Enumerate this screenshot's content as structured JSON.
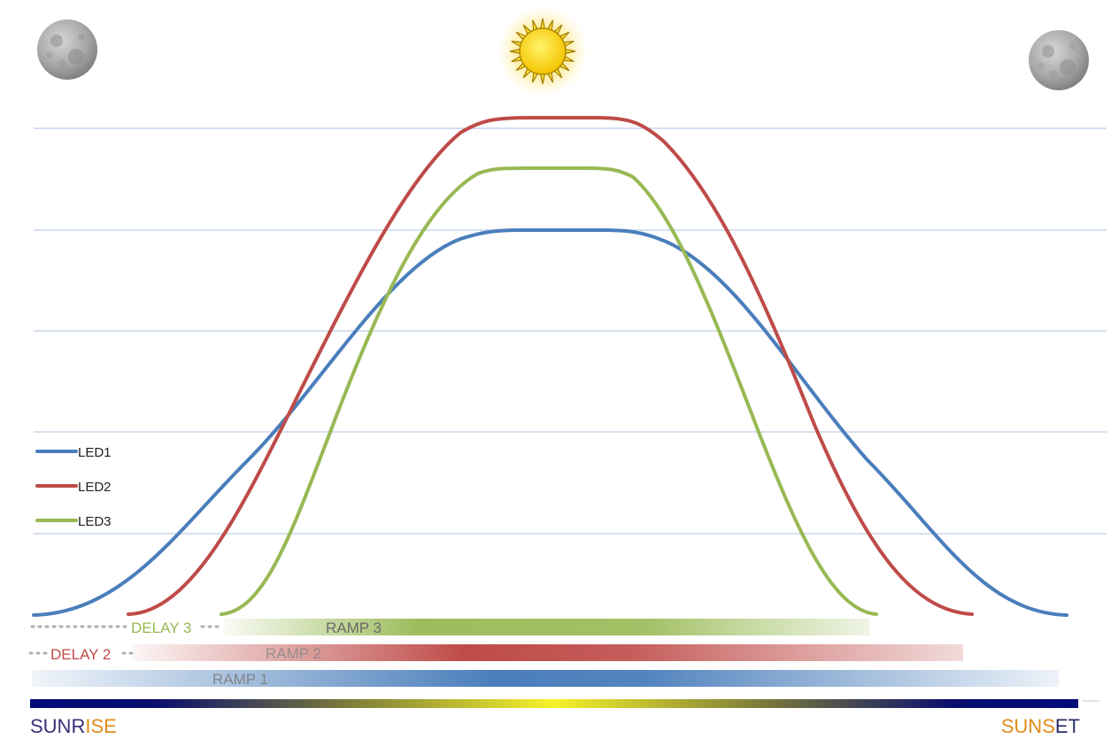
{
  "legend": {
    "led1": "LED1",
    "led2": "LED2",
    "led3": "LED3"
  },
  "bars": {
    "delay3": "DELAY 3",
    "ramp3": "RAMP 3",
    "delay2": "DELAY 2",
    "ramp2": "RAMP 2",
    "ramp1": "RAMP 1"
  },
  "timeline": {
    "sunrise": {
      "part1": "SUNR",
      "part2": "ISE"
    },
    "sunset": {
      "part1": "SUNS",
      "part2": "ET"
    }
  },
  "icons": [
    "moon-icon",
    "sun-icon",
    "moon-icon"
  ],
  "colors": {
    "led1": "#4a7ebb",
    "led2": "#be4b48",
    "led3": "#98b954",
    "gridline": "#c9d6ea",
    "night": "#000a78",
    "noon": "#f2f22a",
    "sunrise_part1": "#3b2f7a",
    "sunrise_part2": "#e08c1a",
    "sunset_part1": "#e08c1a",
    "sunset_part2": "#2b2f6a"
  },
  "chart_data": {
    "type": "line",
    "title": "",
    "xlabel": "",
    "ylabel": "",
    "x_range": [
      0,
      1
    ],
    "ylim": [
      0,
      5
    ],
    "grid": true,
    "legend_position": "middle-left",
    "series": [
      {
        "name": "LED1",
        "peak": 3.8,
        "start": 0.0,
        "end": 1.0
      },
      {
        "name": "LED2",
        "peak": 4.8,
        "start": 0.09,
        "end": 0.9
      },
      {
        "name": "LED3",
        "peak": 4.3,
        "start": 0.19,
        "end": 0.8
      }
    ]
  }
}
